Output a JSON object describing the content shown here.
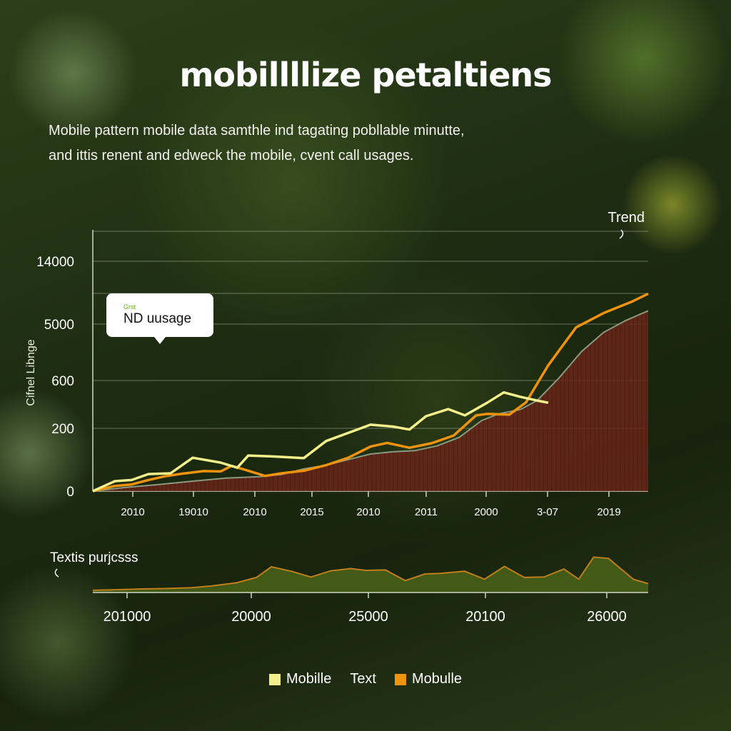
{
  "title": "mobillllize petaltiens",
  "description": [
    "Mobile pattern mobile data samthle ind tagating pobllable minutte,",
    "and ittis renent and edweck the mobile, cvent call usages."
  ],
  "colors": {
    "yellow_line": "#f3ef8a",
    "orange_line": "#f0930c",
    "area_fill": "#6a2618",
    "area_edge": "#8a9a80",
    "grid": "#c8d0b8",
    "bottom_area": "#4a6418",
    "bottom_line": "#c07e1c"
  },
  "chart_data": [
    {
      "type": "line",
      "title": "",
      "ylabel": "Cifnel Libnge",
      "y_ticks": [
        "0",
        "200",
        "600",
        "5000",
        "14000"
      ],
      "x_ticks": [
        "2010",
        "19010",
        "2010",
        "2015",
        "2010",
        "2011",
        "2000",
        "3-07",
        "2019"
      ],
      "annotation_tag": "Grst",
      "annotation": "ND uusage",
      "trend_label": "Trend",
      "series": [
        {
          "name": "Mobille",
          "color": "#f3ef8a",
          "points": [
            [
              0,
              0
            ],
            [
              0.04,
              0.27
            ],
            [
              0.07,
              0.3
            ],
            [
              0.1,
              0.46
            ],
            [
              0.14,
              0.48
            ],
            [
              0.18,
              0.9
            ],
            [
              0.23,
              0.77
            ],
            [
              0.26,
              0.63
            ],
            [
              0.28,
              0.96
            ],
            [
              0.33,
              0.93
            ],
            [
              0.38,
              0.89
            ],
            [
              0.42,
              1.35
            ],
            [
              0.46,
              1.57
            ],
            [
              0.5,
              1.79
            ],
            [
              0.54,
              1.74
            ],
            [
              0.57,
              1.66
            ],
            [
              0.6,
              2.02
            ],
            [
              0.64,
              2.21
            ],
            [
              0.67,
              2.04
            ],
            [
              0.71,
              2.38
            ],
            [
              0.74,
              2.66
            ],
            [
              0.77,
              2.54
            ],
            [
              0.8,
              2.44
            ],
            [
              0.82,
              2.38
            ]
          ]
        },
        {
          "name": "Mobulle",
          "color": "#f0930c",
          "points": [
            [
              0,
              0
            ],
            [
              0.04,
              0.14
            ],
            [
              0.07,
              0.18
            ],
            [
              0.1,
              0.3
            ],
            [
              0.13,
              0.4
            ],
            [
              0.16,
              0.47
            ],
            [
              0.2,
              0.54
            ],
            [
              0.23,
              0.53
            ],
            [
              0.25,
              0.68
            ],
            [
              0.28,
              0.55
            ],
            [
              0.31,
              0.41
            ],
            [
              0.34,
              0.48
            ],
            [
              0.38,
              0.55
            ],
            [
              0.42,
              0.7
            ],
            [
              0.46,
              0.9
            ],
            [
              0.5,
              1.2
            ],
            [
              0.53,
              1.3
            ],
            [
              0.57,
              1.17
            ],
            [
              0.61,
              1.29
            ],
            [
              0.65,
              1.5
            ],
            [
              0.69,
              2.04
            ],
            [
              0.71,
              2.08
            ],
            [
              0.75,
              2.06
            ],
            [
              0.78,
              2.39
            ],
            [
              0.82,
              3.39
            ],
            [
              0.87,
              4.41
            ],
            [
              0.92,
              4.8
            ],
            [
              0.97,
              5.1
            ],
            [
              1,
              5.32
            ]
          ]
        },
        {
          "name": "Area",
          "color": "#6a2618",
          "points": [
            [
              0,
              0
            ],
            [
              0.06,
              0.1
            ],
            [
              0.12,
              0.18
            ],
            [
              0.18,
              0.27
            ],
            [
              0.24,
              0.35
            ],
            [
              0.3,
              0.39
            ],
            [
              0.34,
              0.45
            ],
            [
              0.38,
              0.6
            ],
            [
              0.42,
              0.7
            ],
            [
              0.46,
              0.85
            ],
            [
              0.5,
              1.0
            ],
            [
              0.54,
              1.06
            ],
            [
              0.58,
              1.09
            ],
            [
              0.62,
              1.22
            ],
            [
              0.66,
              1.45
            ],
            [
              0.7,
              1.9
            ],
            [
              0.73,
              2.08
            ],
            [
              0.77,
              2.2
            ],
            [
              0.8,
              2.44
            ],
            [
              0.84,
              3.06
            ],
            [
              0.88,
              3.76
            ],
            [
              0.92,
              4.28
            ],
            [
              0.96,
              4.6
            ],
            [
              1,
              4.86
            ]
          ]
        }
      ]
    },
    {
      "type": "area",
      "ylabel": "Textis purjcsss",
      "x_ticks": [
        "201000",
        "20000",
        "25000",
        "20100",
        "26000"
      ],
      "series": [
        {
          "name": "Text",
          "color": "#4a6418",
          "points": [
            [
              0,
              0.05
            ],
            [
              0.04,
              0.06
            ],
            [
              0.1,
              0.08
            ],
            [
              0.15,
              0.09
            ],
            [
              0.2,
              0.11
            ],
            [
              0.24,
              0.15
            ],
            [
              0.29,
              0.22
            ],
            [
              0.33,
              0.34
            ],
            [
              0.36,
              0.58
            ],
            [
              0.4,
              0.48
            ],
            [
              0.44,
              0.35
            ],
            [
              0.48,
              0.49
            ],
            [
              0.52,
              0.54
            ],
            [
              0.55,
              0.5
            ],
            [
              0.59,
              0.51
            ],
            [
              0.63,
              0.27
            ],
            [
              0.67,
              0.42
            ],
            [
              0.7,
              0.43
            ],
            [
              0.75,
              0.48
            ],
            [
              0.79,
              0.3
            ],
            [
              0.83,
              0.59
            ],
            [
              0.87,
              0.34
            ],
            [
              0.91,
              0.35
            ],
            [
              0.95,
              0.53
            ],
            [
              0.98,
              0.3
            ],
            [
              1.01,
              0.8
            ],
            [
              1.04,
              0.77
            ],
            [
              1.06,
              0.58
            ],
            [
              1.09,
              0.3
            ],
            [
              1.12,
              0.2
            ]
          ]
        }
      ]
    }
  ],
  "legend": [
    {
      "label": "Mobille",
      "color": "#f3ef8a"
    },
    {
      "label": "Text",
      "color": ""
    },
    {
      "label": "Mobulle",
      "color": "#f0930c"
    }
  ]
}
